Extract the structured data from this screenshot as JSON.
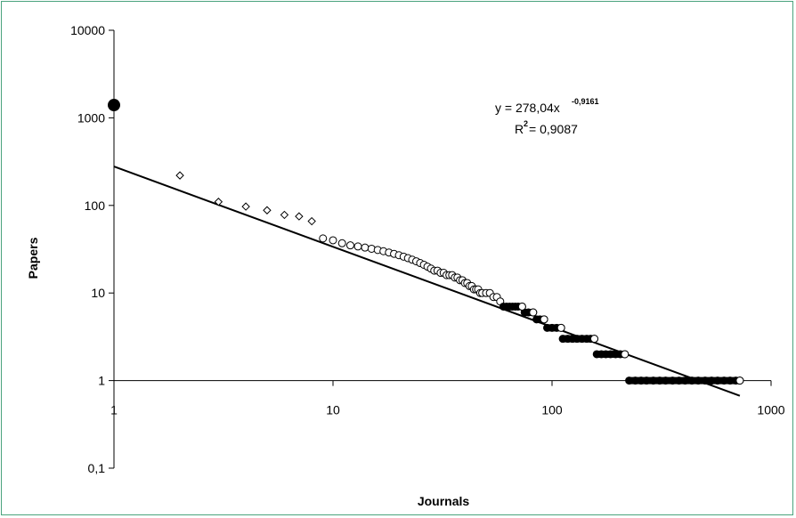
{
  "chart_data": {
    "type": "scatter",
    "title": "",
    "xlabel": "Journals",
    "ylabel": "Papers",
    "x_scale": "log",
    "y_scale": "log",
    "xlim": [
      1,
      1000
    ],
    "ylim": [
      0.1,
      10000
    ],
    "x_ticks": [
      "1",
      "10",
      "100",
      "1000"
    ],
    "y_ticks": [
      "0,1",
      "1",
      "10",
      "100",
      "1000",
      "10000"
    ],
    "grid": false,
    "highlighted_point": {
      "x": 1,
      "y": 1400
    },
    "points": [
      [
        2,
        220
      ],
      [
        3,
        110
      ],
      [
        4,
        97
      ],
      [
        5,
        88
      ],
      [
        6,
        78
      ],
      [
        7,
        75
      ],
      [
        8,
        66
      ],
      [
        9,
        42
      ],
      [
        10,
        40
      ],
      [
        11,
        37
      ],
      [
        12,
        35
      ],
      [
        13,
        34
      ],
      [
        14,
        33
      ],
      [
        15,
        32
      ],
      [
        16,
        31
      ],
      [
        17,
        30
      ],
      [
        18,
        29
      ],
      [
        19,
        28
      ],
      [
        20,
        27
      ],
      [
        21,
        26
      ],
      [
        22,
        25
      ],
      [
        23,
        24
      ],
      [
        24,
        23
      ],
      [
        25,
        22
      ],
      [
        26,
        21
      ],
      [
        27,
        20
      ],
      [
        28,
        19
      ],
      [
        29,
        18
      ],
      [
        30,
        18
      ],
      [
        31,
        17
      ],
      [
        32,
        17
      ],
      [
        33,
        16
      ],
      [
        34,
        16
      ],
      [
        35,
        16
      ],
      [
        36,
        15
      ],
      [
        37,
        15
      ],
      [
        38,
        14
      ],
      [
        39,
        14
      ],
      [
        40,
        13
      ],
      [
        41,
        13
      ],
      [
        42,
        12
      ],
      [
        43,
        12
      ],
      [
        44,
        11
      ],
      [
        45,
        11
      ],
      [
        46,
        11
      ],
      [
        47,
        10
      ],
      [
        48,
        10
      ],
      [
        50,
        10
      ],
      [
        52,
        10
      ],
      [
        54,
        9
      ],
      [
        56,
        9
      ],
      [
        58,
        8
      ],
      [
        60,
        7
      ],
      [
        62,
        7
      ],
      [
        64,
        7
      ],
      [
        66,
        7
      ],
      [
        68,
        7
      ],
      [
        70,
        7
      ],
      [
        73,
        7
      ],
      [
        75,
        6
      ],
      [
        78,
        6
      ],
      [
        82,
        6
      ],
      [
        85,
        5
      ],
      [
        88,
        5
      ],
      [
        92,
        5
      ],
      [
        95,
        4
      ],
      [
        100,
        4
      ],
      [
        105,
        4
      ],
      [
        110,
        4
      ],
      [
        112,
        3
      ],
      [
        118,
        3
      ],
      [
        124,
        3
      ],
      [
        130,
        3
      ],
      [
        137,
        3
      ],
      [
        144,
        3
      ],
      [
        150,
        3
      ],
      [
        156,
        3
      ],
      [
        160,
        2
      ],
      [
        168,
        2
      ],
      [
        176,
        2
      ],
      [
        185,
        2
      ],
      [
        195,
        2
      ],
      [
        205,
        2
      ],
      [
        215,
        2
      ],
      [
        225,
        1
      ],
      [
        240,
        1
      ],
      [
        255,
        1
      ],
      [
        270,
        1
      ],
      [
        290,
        1
      ],
      [
        310,
        1
      ],
      [
        330,
        1
      ],
      [
        355,
        1
      ],
      [
        380,
        1
      ],
      [
        405,
        1
      ],
      [
        435,
        1
      ],
      [
        465,
        1
      ],
      [
        500,
        1
      ],
      [
        535,
        1
      ],
      [
        570,
        1
      ],
      [
        610,
        1
      ],
      [
        650,
        1
      ],
      [
        690,
        1
      ],
      [
        720,
        1
      ]
    ],
    "trendline": {
      "equation_prefix": "y = 278,04x",
      "equation_exponent": "-0,9161",
      "r2_prefix": "R",
      "r2_sup": "2",
      "r2_value": " = 0,9087",
      "a": 278.04,
      "b": -0.9161,
      "x_range": [
        1,
        720
      ]
    },
    "colors": {
      "frame": "#4aa37d",
      "marks": "#000000",
      "background": "#ffffff"
    }
  }
}
